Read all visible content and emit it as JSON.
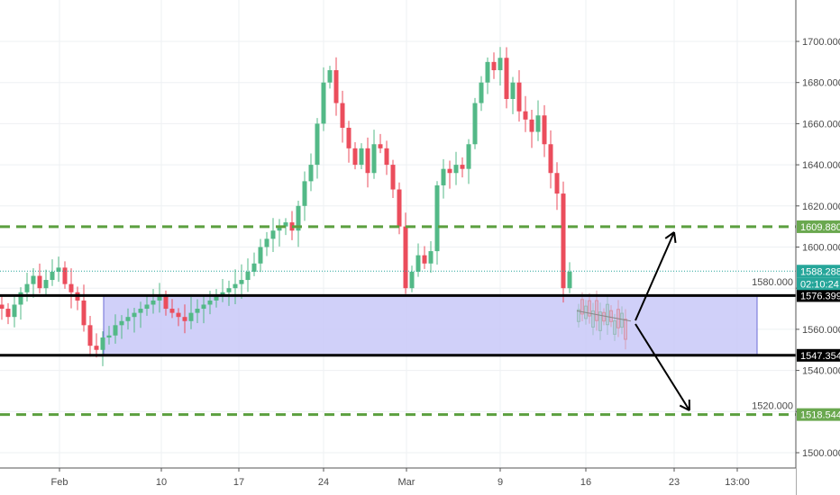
{
  "chart_data": {
    "type": "candlestick",
    "x_tick_labels": [
      "Feb",
      "10",
      "17",
      "24",
      "Mar",
      "9",
      "16",
      "23",
      "13:00"
    ],
    "y_tick_labels": [
      "1500.000",
      "1520.000",
      "1540.000",
      "1560.000",
      "1580.000",
      "1600.000",
      "1620.000",
      "1640.000",
      "1660.000",
      "1680.000",
      "1700.000"
    ],
    "ylim": [
      1490,
      1715
    ],
    "grid": true,
    "closes": [
      1570,
      1566,
      1572,
      1578,
      1582,
      1586,
      1580,
      1584,
      1588,
      1590,
      1582,
      1578,
      1574,
      1562,
      1552,
      1550,
      1556,
      1557,
      1562,
      1564,
      1566,
      1568,
      1570,
      1572,
      1574,
      1576,
      1570,
      1568,
      1566,
      1564,
      1568,
      1570,
      1572,
      1574,
      1576,
      1578,
      1580,
      1582,
      1584,
      1588,
      1592,
      1600,
      1604,
      1608,
      1610,
      1612,
      1608,
      1620,
      1632,
      1640,
      1660,
      1680,
      1686,
      1670,
      1658,
      1648,
      1640,
      1648,
      1636,
      1650,
      1648,
      1640,
      1628,
      1610,
      1580,
      1588,
      1596,
      1592,
      1598,
      1630,
      1638,
      1636,
      1640,
      1638,
      1650,
      1670,
      1680,
      1690,
      1686,
      1692,
      1672,
      1680,
      1666,
      1662,
      1656,
      1664,
      1650,
      1636,
      1626,
      1580,
      1588
    ],
    "current_price": {
      "value": "1588.288",
      "countdown": "02:10:24"
    },
    "levels": [
      {
        "label": "1609.880",
        "value": 1609.88,
        "style": "dashed",
        "color": "#5b9f3f"
      },
      {
        "label": "1576.399",
        "value": 1576.399,
        "style": "solid",
        "color": "#000000"
      },
      {
        "label": "1547.354",
        "value": 1547.354,
        "style": "solid",
        "color": "#000000"
      },
      {
        "label": "1518.544",
        "value": 1518.544,
        "style": "dashed",
        "color": "#5b9f3f"
      }
    ],
    "range_box": {
      "top": 1576.399,
      "bottom": 1547.354,
      "color": "#c8c8f8"
    },
    "colors": {
      "up": "#53b987",
      "down": "#eb4d5c",
      "last_price": "#26a69a"
    }
  }
}
